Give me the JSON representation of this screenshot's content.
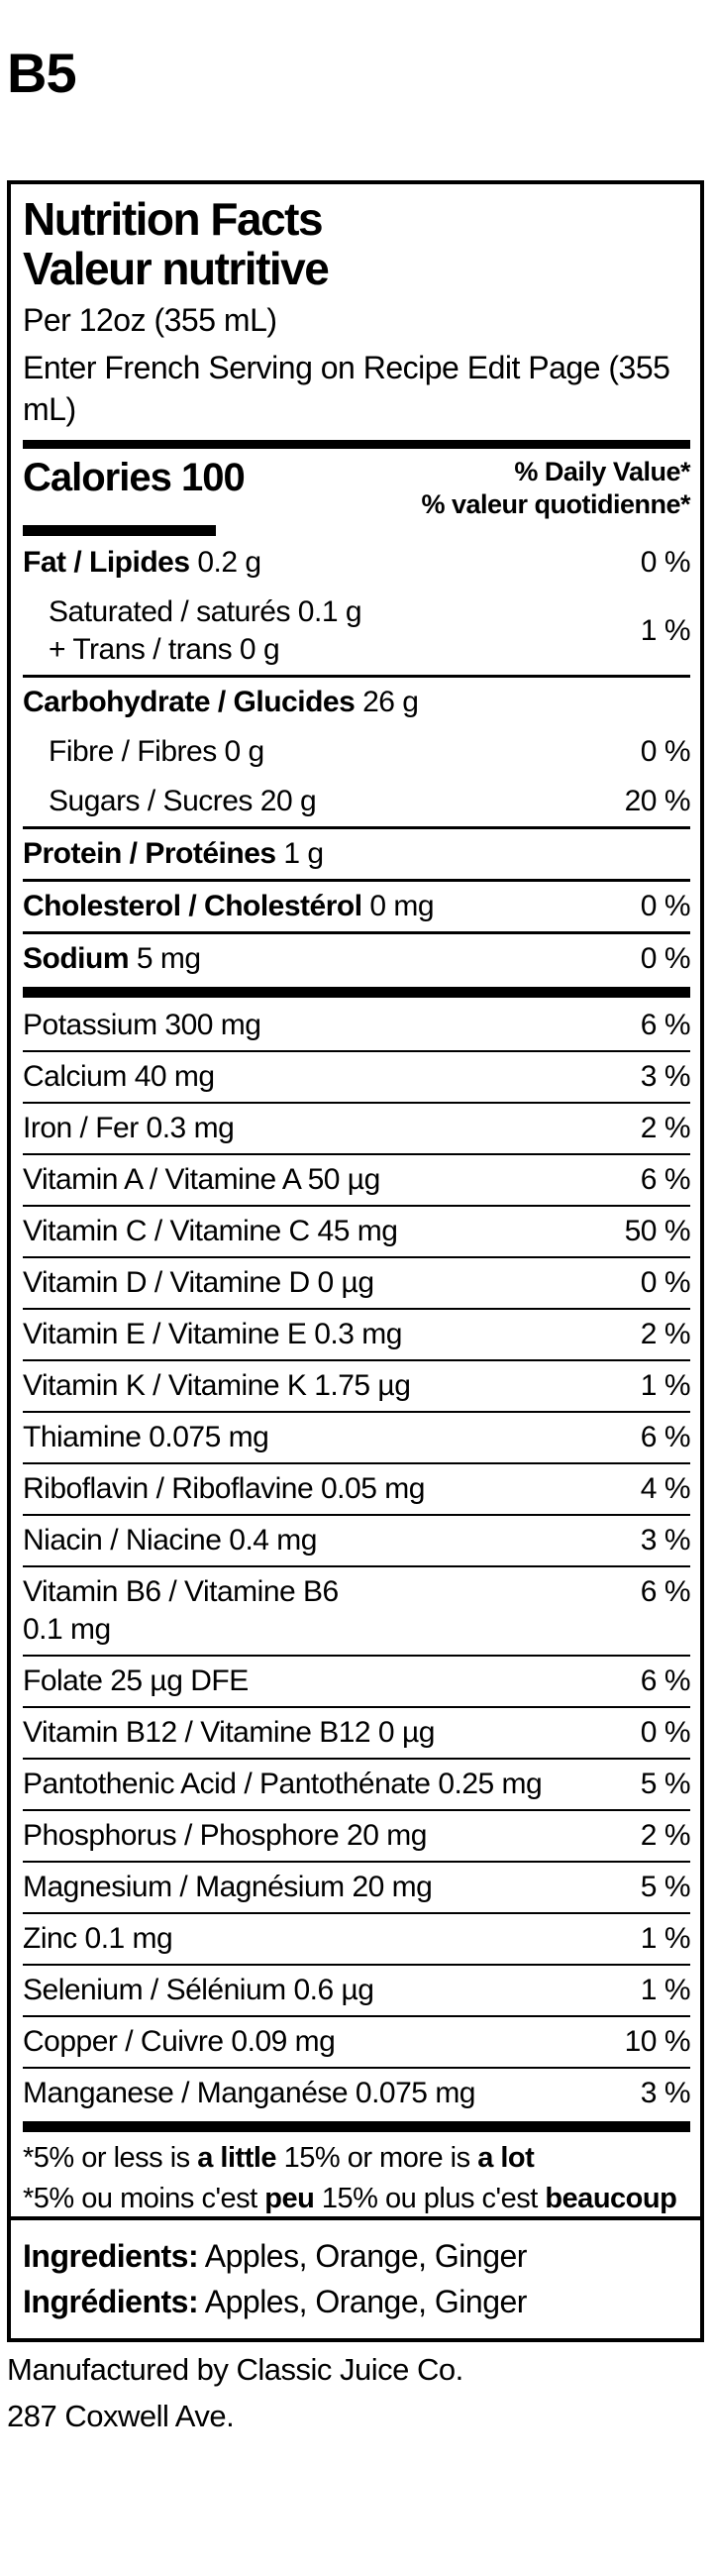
{
  "page": {
    "heading": "B5"
  },
  "colors": {
    "ink": "#000000",
    "background": "#ffffff"
  },
  "label": {
    "title_en": "Nutrition Facts",
    "title_fr": "Valeur nutritive",
    "serving_en": "Per 12oz (355 mL)",
    "serving_fr": "Enter French Serving on Recipe Edit Page (355 mL)",
    "calories": {
      "label": "Calories",
      "value": " 100"
    },
    "dv_header_en": "% Daily Value*",
    "dv_header_fr": "% valeur quotidienne*",
    "fat": {
      "label": "Fat / Lipides",
      "value": " 0.2 g",
      "dv": "0 %"
    },
    "sat_trans": {
      "line1": "Saturated / saturés 0.1 g",
      "line2": "+ Trans / trans 0 g",
      "dv": "1 %"
    },
    "carbohydrate": {
      "label": "Carbohydrate / Glucides",
      "value": " 26 g"
    },
    "fibre": {
      "text": "Fibre / Fibres 0 g",
      "dv": "0 %"
    },
    "sugars": {
      "text": "Sugars / Sucres 20 g",
      "dv": "20 %"
    },
    "protein": {
      "label": "Protein / Protéines",
      "value": " 1 g"
    },
    "cholesterol": {
      "label": "Cholesterol / Cholestérol",
      "value": " 0 mg",
      "dv": "0 %"
    },
    "sodium": {
      "label": "Sodium",
      "value": " 5 mg",
      "dv": "0 %"
    },
    "vitamins": [
      {
        "text": "Potassium 300 mg",
        "dv": "6 %"
      },
      {
        "text": "Calcium 40 mg",
        "dv": "3 %"
      },
      {
        "text": "Iron / Fer 0.3 mg",
        "dv": "2 %"
      },
      {
        "text": "Vitamin A / Vitamine A 50 µg",
        "dv": "6 %"
      },
      {
        "text": "Vitamin C / Vitamine C 45 mg",
        "dv": "50 %"
      },
      {
        "text": "Vitamin D / Vitamine D 0 µg",
        "dv": "0 %"
      },
      {
        "text": "Vitamin E / Vitamine E 0.3 mg",
        "dv": "2 %"
      },
      {
        "text": "Vitamin K / Vitamine K 1.75 µg",
        "dv": "1 %"
      },
      {
        "text": "Thiamine 0.075 mg",
        "dv": "6 %"
      },
      {
        "text": "Riboflavin / Riboflavine 0.05 mg",
        "dv": "4 %"
      },
      {
        "text": "Niacin / Niacine 0.4 mg",
        "dv": "3 %"
      },
      {
        "line1": "Vitamin B6 / Vitamine B6",
        "line2": "0.1 mg",
        "dv": "6 %"
      },
      {
        "text": "Folate 25 µg DFE",
        "dv": "6 %"
      },
      {
        "text": "Vitamin B12 / Vitamine B12 0 µg",
        "dv": "0 %"
      },
      {
        "text": "Pantothenic Acid / Pantothénate 0.25 mg",
        "dv": "5 %"
      },
      {
        "text": "Phosphorus / Phosphore 20 mg",
        "dv": "2 %"
      },
      {
        "text": "Magnesium / Magnésium 20 mg",
        "dv": "5 %"
      },
      {
        "text": "Zinc 0.1 mg",
        "dv": "1 %"
      },
      {
        "text": "Selenium / Sélénium 0.6 µg",
        "dv": "1 %"
      },
      {
        "text": "Copper / Cuivre 0.09 mg",
        "dv": "10 %"
      },
      {
        "text": "Manganese / Manganése 0.075 mg",
        "dv": "3 %"
      }
    ],
    "footnote_en": {
      "t1": "*5% or less is ",
      "b1": "a little",
      "t2": " 15% or more is ",
      "b2": "a lot"
    },
    "footnote_fr": {
      "t1": "*5% ou moins c'est ",
      "b1": "peu",
      "t2": " 15% ou plus c'est ",
      "b2": "beaucoup"
    }
  },
  "ingredients": {
    "en_label": "Ingredients:",
    "en_text": " Apples, Orange, Ginger",
    "fr_label": "Ingrédients:",
    "fr_text": " Apples, Orange, Ginger"
  },
  "footer": {
    "line1": "Manufactured by Classic Juice Co.",
    "line2": "287 Coxwell Ave."
  }
}
